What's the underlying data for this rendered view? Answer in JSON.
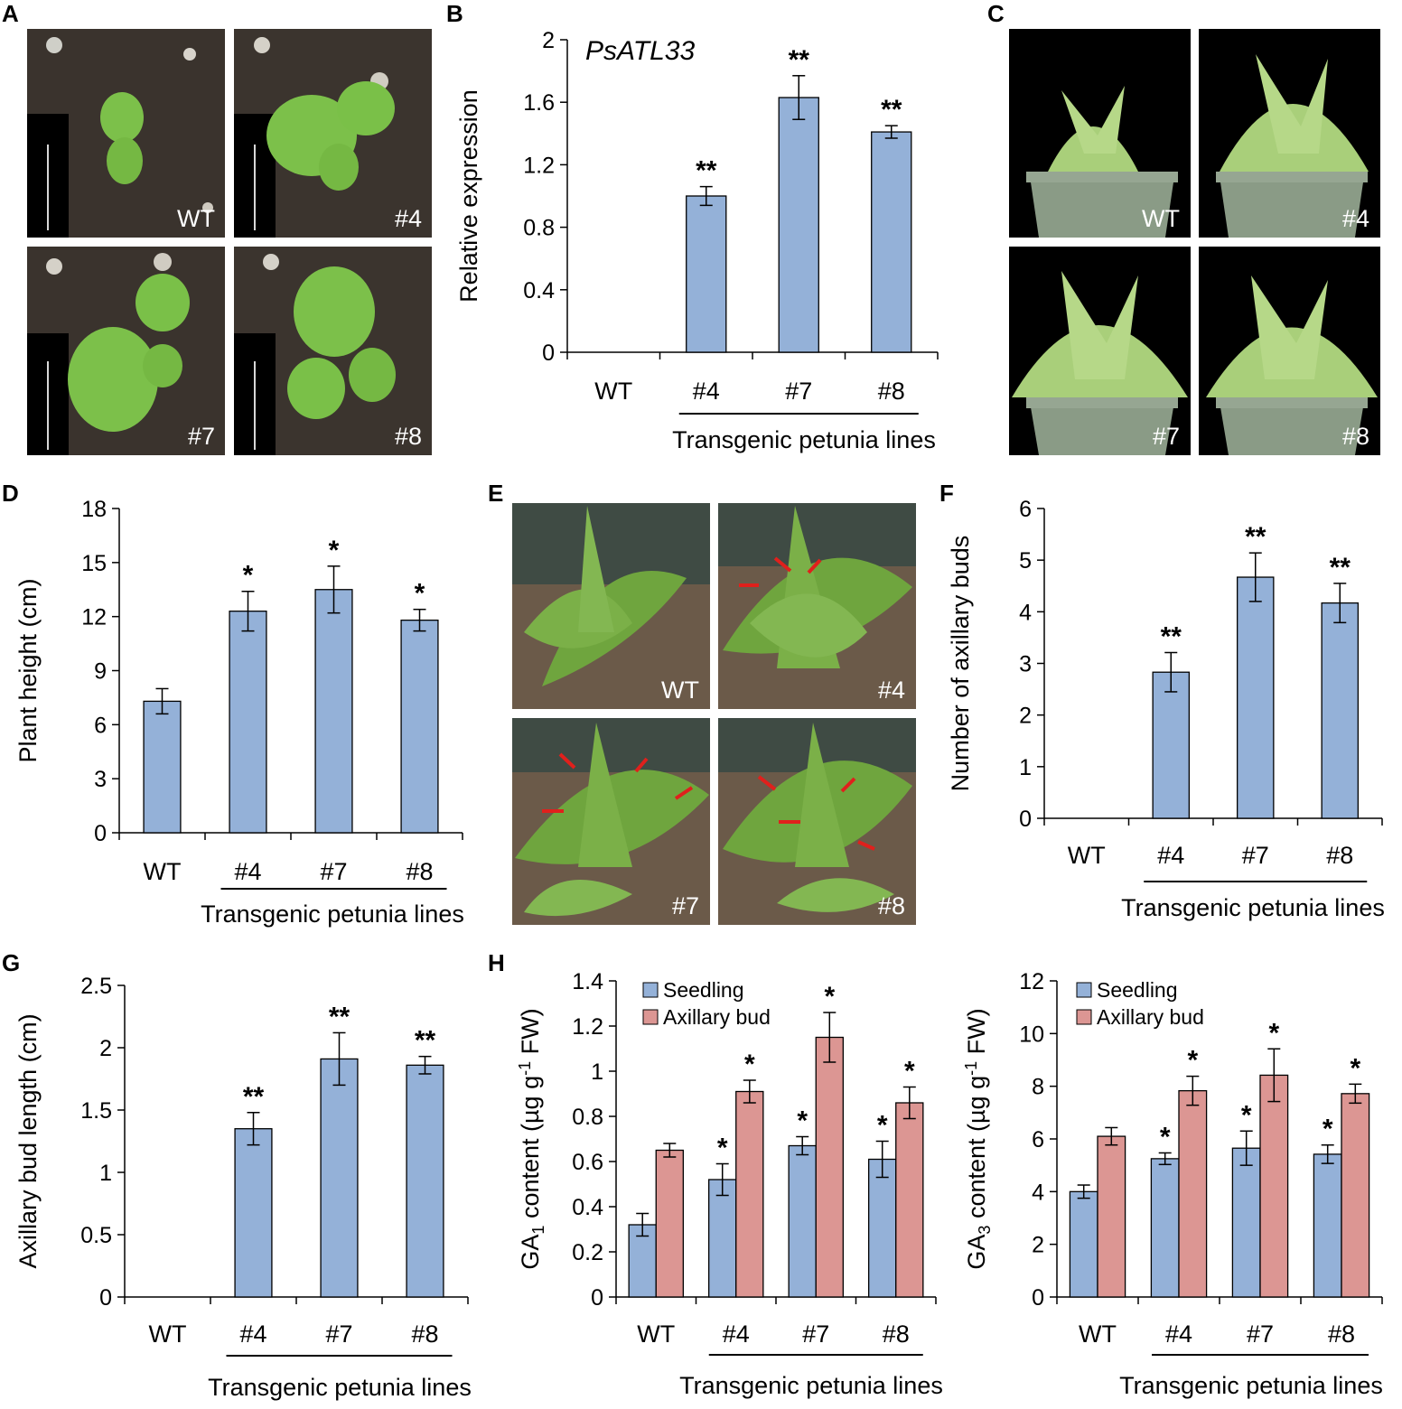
{
  "panels": {
    "A": {
      "letter": "A",
      "photos": [
        "WT",
        "#4",
        "#7",
        "#8"
      ],
      "colors": {
        "soil": "#3a332d",
        "leaf": "#7cc04a",
        "inset": "#000000"
      }
    },
    "C": {
      "letter": "C",
      "photos": [
        "WT",
        "#4",
        "#7",
        "#8"
      ],
      "colors": {
        "background": "#000000",
        "pot": "#8a9b86",
        "leaf": "#a9cf7a"
      }
    },
    "E": {
      "letter": "E",
      "photos": [
        "WT",
        "#4",
        "#7",
        "#8"
      ],
      "arrow_color": "#e0201c",
      "colors": {
        "soil": "#6b5a49",
        "leaf": "#6fa53e",
        "pot": "#3f4b44"
      }
    }
  },
  "chart_data": [
    {
      "panel": "B",
      "type": "bar",
      "title": "PsATL33",
      "categories": [
        "WT",
        "#4",
        "#7",
        "#8"
      ],
      "series": [
        {
          "values": [
            0,
            1.0,
            1.63,
            1.41
          ],
          "errors": [
            0,
            0.06,
            0.14,
            0.04
          ],
          "significance": [
            "",
            "**",
            "**",
            "**"
          ],
          "color": "#94b1d8"
        }
      ],
      "ylabel": "Relative expression",
      "xlabel": "",
      "group_label": "Transgenic petunia lines",
      "ylim": [
        0,
        2
      ],
      "yticks": [
        "0",
        "0.4",
        "0.8",
        "1.2",
        "1.6",
        "2"
      ],
      "grid": false
    },
    {
      "panel": "D",
      "type": "bar",
      "title": "",
      "categories": [
        "WT",
        "#4",
        "#7",
        "#8"
      ],
      "series": [
        {
          "values": [
            7.3,
            12.3,
            13.5,
            11.8
          ],
          "errors": [
            0.7,
            1.1,
            1.3,
            0.6
          ],
          "significance": [
            "",
            "*",
            "*",
            "*"
          ],
          "color": "#94b1d8"
        }
      ],
      "ylabel": "Plant height (cm)",
      "xlabel": "",
      "group_label": "Transgenic petunia lines",
      "ylim": [
        0,
        18
      ],
      "yticks": [
        "0",
        "3",
        "6",
        "9",
        "12",
        "15",
        "18"
      ],
      "grid": false
    },
    {
      "panel": "F",
      "type": "bar",
      "title": "",
      "categories": [
        "WT",
        "#4",
        "#7",
        "#8"
      ],
      "series": [
        {
          "values": [
            0,
            2.83,
            4.67,
            4.17
          ],
          "errors": [
            0,
            0.38,
            0.47,
            0.38
          ],
          "significance": [
            "",
            "**",
            "**",
            "**"
          ],
          "color": "#94b1d8"
        }
      ],
      "ylabel": "Number of axillary buds",
      "xlabel": "",
      "group_label": "Transgenic petunia lines",
      "ylim": [
        0,
        6
      ],
      "yticks": [
        "0",
        "1",
        "2",
        "3",
        "4",
        "5",
        "6"
      ],
      "grid": false
    },
    {
      "panel": "G",
      "type": "bar",
      "title": "",
      "categories": [
        "WT",
        "#4",
        "#7",
        "#8"
      ],
      "series": [
        {
          "values": [
            0,
            1.35,
            1.91,
            1.86
          ],
          "errors": [
            0,
            0.13,
            0.21,
            0.07
          ],
          "significance": [
            "",
            "**",
            "**",
            "**"
          ],
          "color": "#94b1d8"
        }
      ],
      "ylabel": "Axillary bud length (cm)",
      "xlabel": "",
      "group_label": "Transgenic petunia lines",
      "ylim": [
        0,
        2.5
      ],
      "yticks": [
        "0",
        "0.5",
        "1",
        "1.5",
        "2",
        "2.5"
      ],
      "grid": false
    },
    {
      "panel": "H",
      "type": "bar",
      "title": "",
      "categories": [
        "WT",
        "#4",
        "#7",
        "#8"
      ],
      "series": [
        {
          "name": "Seedling",
          "values": [
            0.32,
            0.52,
            0.67,
            0.61
          ],
          "errors": [
            0.05,
            0.07,
            0.04,
            0.08
          ],
          "significance": [
            "",
            "*",
            "*",
            "*"
          ],
          "color": "#94b1d8"
        },
        {
          "name": "Axillary bud",
          "values": [
            0.65,
            0.91,
            1.15,
            0.86
          ],
          "errors": [
            0.03,
            0.05,
            0.11,
            0.07
          ],
          "significance": [
            "",
            "*",
            "*",
            "*"
          ],
          "color": "#dc9693"
        }
      ],
      "ylabel_main": "GA",
      "ylabel_sub": "1",
      "ylabel_rest": " content (µg g",
      "ylabel_sup": "-1",
      "ylabel_end": " FW)",
      "xlabel": "",
      "group_label": "Transgenic petunia lines",
      "ylim": [
        0,
        1.4
      ],
      "yticks": [
        "0",
        "0.2",
        "0.4",
        "0.6",
        "0.8",
        "1",
        "1.2",
        "1.4"
      ],
      "legend": "top-left",
      "grid": false
    },
    {
      "panel": "H2",
      "type": "bar",
      "title": "",
      "categories": [
        "WT",
        "#4",
        "#7",
        "#8"
      ],
      "series": [
        {
          "name": "Seedling",
          "values": [
            4.0,
            5.25,
            5.65,
            5.42
          ],
          "errors": [
            0.25,
            0.22,
            0.65,
            0.35
          ],
          "significance": [
            "",
            "*",
            "*",
            "*"
          ],
          "color": "#94b1d8"
        },
        {
          "name": "Axillary bud",
          "values": [
            6.1,
            7.83,
            8.42,
            7.72
          ],
          "errors": [
            0.33,
            0.55,
            1.0,
            0.36
          ],
          "significance": [
            "",
            "*",
            "*",
            "*"
          ],
          "color": "#dc9693"
        }
      ],
      "ylabel_main": "GA",
      "ylabel_sub": "3",
      "ylabel_rest": " content (µg g",
      "ylabel_sup": "-1",
      "ylabel_end": " FW)",
      "xlabel": "",
      "group_label": "Transgenic petunia lines",
      "ylim": [
        0,
        12
      ],
      "yticks": [
        "0",
        "2",
        "4",
        "6",
        "8",
        "10",
        "12"
      ],
      "legend": "top-left",
      "grid": false
    }
  ],
  "panel_letters": {
    "B": "B",
    "D": "D",
    "F": "F",
    "G": "G",
    "H": "H"
  }
}
